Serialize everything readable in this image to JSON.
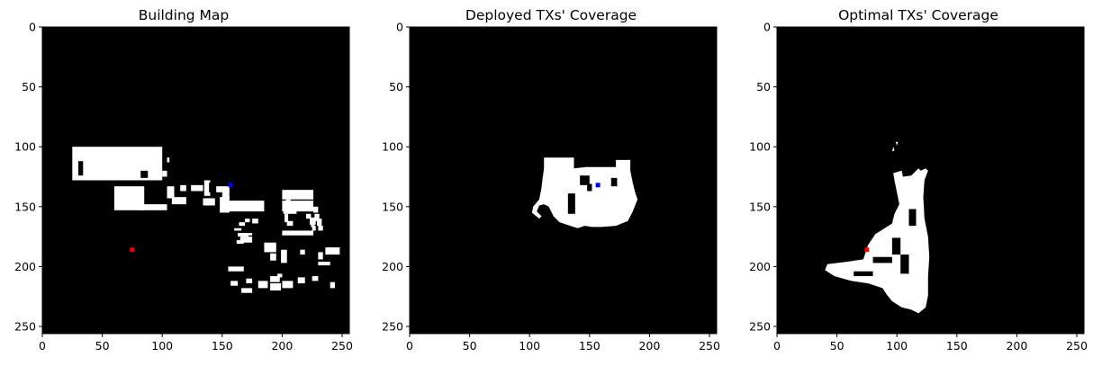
{
  "figure": {
    "panels": [
      {
        "id": "building-map",
        "title": "Building Map"
      },
      {
        "id": "deployed-coverage",
        "title": "Deployed TXs' Coverage"
      },
      {
        "id": "optimal-coverage",
        "title": "Optimal TXs' Coverage"
      }
    ]
  },
  "chart_data": [
    {
      "type": "heatmap",
      "title": "Building Map",
      "xlabel": "",
      "ylabel": "",
      "xlim": [
        0,
        256
      ],
      "ylim": [
        256,
        0
      ],
      "x_ticks": [
        0,
        50,
        100,
        150,
        200,
        250
      ],
      "y_ticks": [
        0,
        50,
        100,
        150,
        200,
        250
      ],
      "grid": false,
      "colors": {
        "background": "#000000",
        "foreground": "#ffffff"
      },
      "white_regions": [
        [
          25,
          100,
          100,
          128
        ],
        [
          60,
          85,
          133,
          153
        ],
        [
          78,
          84,
          115,
          120
        ],
        [
          100,
          104,
          120,
          125
        ],
        [
          104,
          106,
          109,
          113
        ],
        [
          104,
          110,
          133,
          143
        ],
        [
          80,
          104,
          148,
          153
        ],
        [
          115,
          120,
          132,
          137
        ],
        [
          124,
          134,
          132,
          137
        ],
        [
          135,
          140,
          128,
          141
        ],
        [
          108,
          120,
          142,
          148
        ],
        [
          134,
          144,
          143,
          149
        ],
        [
          145,
          156,
          133,
          138
        ],
        [
          150,
          156,
          137,
          144
        ],
        [
          148,
          156,
          142,
          155
        ],
        [
          150,
          185,
          145,
          154
        ],
        [
          200,
          226,
          145,
          154
        ],
        [
          201,
          212,
          151,
          156
        ],
        [
          202,
          205,
          156,
          163
        ],
        [
          204,
          209,
          162,
          166
        ],
        [
          200,
          226,
          170,
          174
        ],
        [
          200,
          226,
          136,
          144
        ],
        [
          203,
          207,
          144,
          148
        ],
        [
          210,
          216,
          148,
          150
        ],
        [
          220,
          224,
          139,
          143
        ],
        [
          165,
          169,
          172,
          174
        ],
        [
          170,
          175,
          172,
          174
        ],
        [
          160,
          166,
          168,
          170
        ],
        [
          169,
          173,
          160,
          163
        ],
        [
          175,
          180,
          160,
          164
        ],
        [
          164,
          169,
          163,
          166
        ],
        [
          165,
          175,
          175,
          180
        ],
        [
          162,
          168,
          178,
          181
        ],
        [
          163,
          172,
          172,
          175
        ],
        [
          226,
          230,
          150,
          155
        ],
        [
          223,
          228,
          159,
          165
        ],
        [
          220,
          224,
          156,
          160
        ],
        [
          227,
          231,
          156,
          162
        ],
        [
          224,
          227,
          164,
          167
        ],
        [
          229,
          233,
          160,
          166
        ],
        [
          225,
          228,
          166,
          170
        ],
        [
          230,
          234,
          166,
          170
        ],
        [
          155,
          168,
          200,
          204
        ],
        [
          157,
          163,
          212,
          216
        ],
        [
          166,
          175,
          218,
          222
        ],
        [
          170,
          175,
          210,
          214
        ],
        [
          180,
          188,
          212,
          218
        ],
        [
          190,
          199,
          214,
          220
        ],
        [
          200,
          209,
          212,
          218
        ],
        [
          196,
          200,
          206,
          209
        ],
        [
          199,
          204,
          186,
          197
        ],
        [
          185,
          195,
          180,
          188
        ],
        [
          190,
          195,
          189,
          195
        ],
        [
          190,
          198,
          208,
          213
        ],
        [
          213,
          219,
          209,
          214
        ],
        [
          215,
          219,
          186,
          190
        ],
        [
          225,
          230,
          208,
          212
        ],
        [
          230,
          234,
          188,
          194
        ],
        [
          240,
          244,
          213,
          218
        ],
        [
          236,
          248,
          184,
          190
        ],
        [
          230,
          240,
          196,
          199
        ]
      ],
      "markers": [
        {
          "color": "#0000ff",
          "x": 157,
          "y": 132
        },
        {
          "color": "#ff0000",
          "x": 75,
          "y": 186
        }
      ]
    },
    {
      "type": "heatmap",
      "title": "Deployed TXs' Coverage",
      "xlabel": "",
      "ylabel": "",
      "xlim": [
        0,
        256
      ],
      "ylim": [
        256,
        0
      ],
      "x_ticks": [
        0,
        50,
        100,
        150,
        200,
        250
      ],
      "y_ticks": [
        0,
        50,
        100,
        150,
        200,
        250
      ],
      "grid": false,
      "colors": {
        "background": "#000000",
        "foreground": "#ffffff"
      },
      "markers": [
        {
          "color": "#0000ff",
          "x": 157,
          "y": 132
        }
      ]
    },
    {
      "type": "heatmap",
      "title": "Optimal TXs' Coverage",
      "xlabel": "",
      "ylabel": "",
      "xlim": [
        0,
        256
      ],
      "ylim": [
        256,
        0
      ],
      "x_ticks": [
        0,
        50,
        100,
        150,
        200,
        250
      ],
      "y_ticks": [
        0,
        50,
        100,
        150,
        200,
        250
      ],
      "grid": false,
      "colors": {
        "background": "#000000",
        "foreground": "#ffffff"
      },
      "markers": [
        {
          "color": "#ff0000",
          "x": 75,
          "y": 186
        }
      ]
    }
  ]
}
